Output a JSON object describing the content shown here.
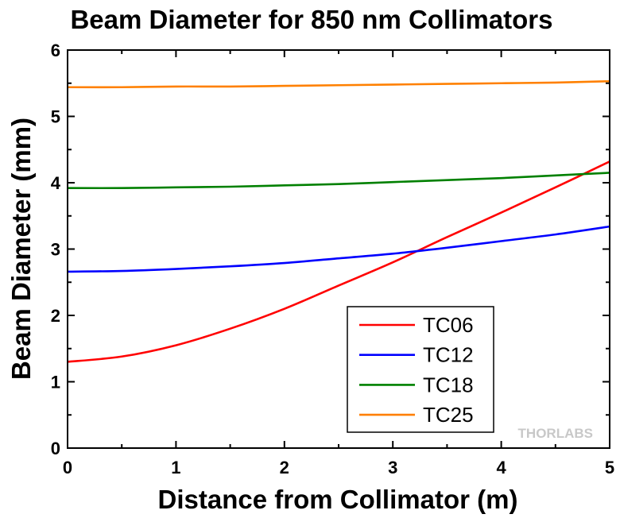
{
  "chart_data": {
    "type": "line",
    "title": "Beam Diameter for 850 nm Collimators",
    "xlabel": "Distance from Collimator (m)",
    "ylabel": "Beam Diameter (mm)",
    "xlim": [
      0,
      5
    ],
    "ylim": [
      0,
      6
    ],
    "xticks": [
      0,
      1,
      2,
      3,
      4,
      5
    ],
    "yticks": [
      0,
      1,
      2,
      3,
      4,
      5,
      6
    ],
    "grid": false,
    "legend_position": "bottom-right",
    "x": [
      0,
      0.5,
      1,
      1.5,
      2,
      2.5,
      3,
      3.5,
      4,
      4.5,
      5
    ],
    "series": [
      {
        "name": "TC06",
        "color": "#ff0000",
        "values": [
          1.3,
          1.38,
          1.55,
          1.8,
          2.1,
          2.45,
          2.8,
          3.18,
          3.55,
          3.93,
          4.32
        ]
      },
      {
        "name": "TC12",
        "color": "#0000ff",
        "values": [
          2.66,
          2.67,
          2.7,
          2.74,
          2.79,
          2.86,
          2.93,
          3.02,
          3.12,
          3.22,
          3.34
        ]
      },
      {
        "name": "TC18",
        "color": "#008000",
        "values": [
          3.92,
          3.92,
          3.93,
          3.94,
          3.96,
          3.98,
          4.01,
          4.04,
          4.07,
          4.11,
          4.15
        ]
      },
      {
        "name": "TC25",
        "color": "#ff8000",
        "values": [
          5.44,
          5.44,
          5.45,
          5.45,
          5.46,
          5.47,
          5.48,
          5.49,
          5.5,
          5.51,
          5.53
        ]
      }
    ],
    "watermark": "THORLABS"
  }
}
